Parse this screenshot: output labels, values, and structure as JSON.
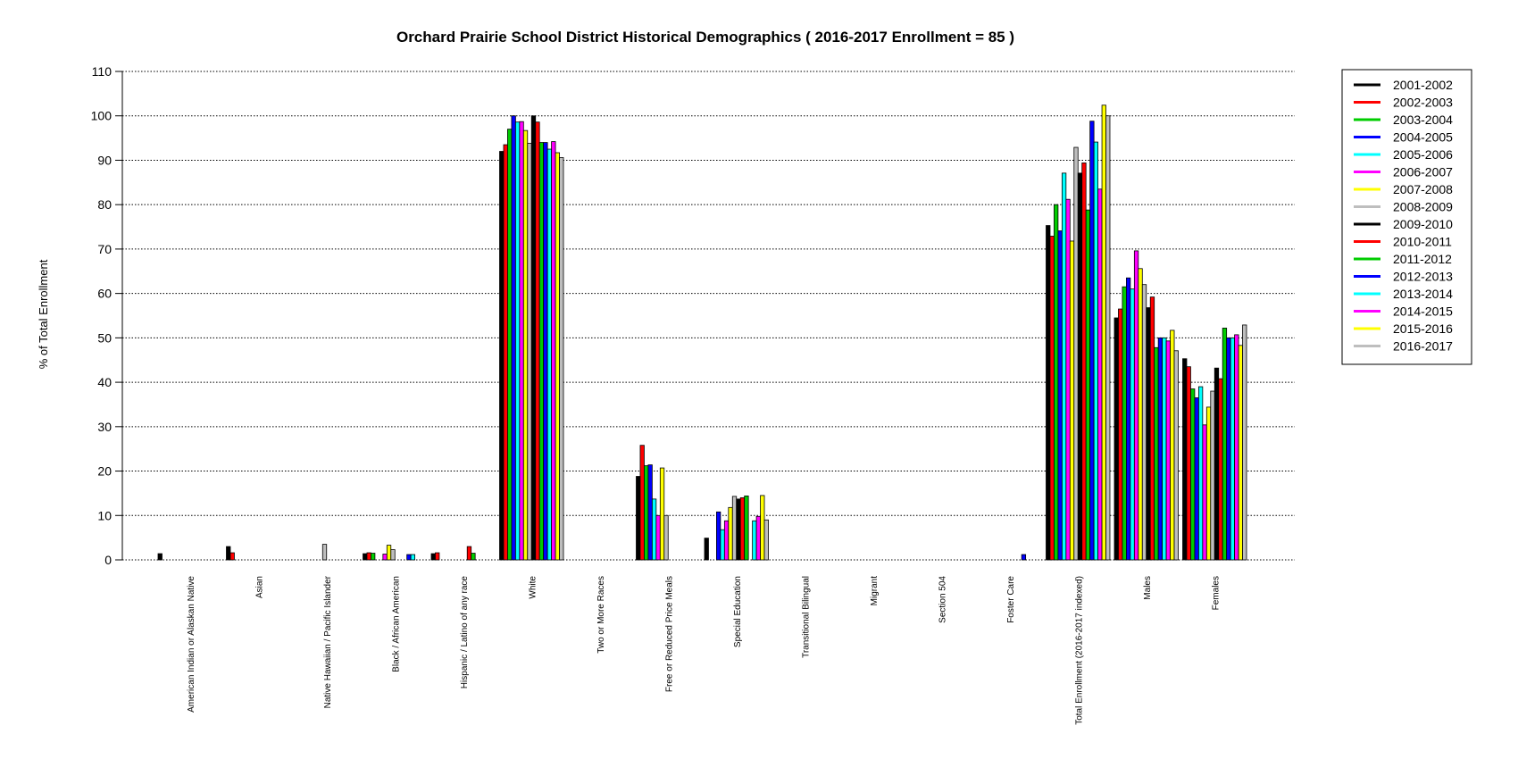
{
  "chart_data": {
    "type": "bar",
    "title": "Orchard Prairie School District Historical Demographics  ( 2016-2017 Enrollment =  85 )",
    "xlabel": "",
    "ylabel": "% of Total Enrollment",
    "ylim": [
      0,
      110
    ],
    "yticks": [
      0,
      10,
      20,
      30,
      40,
      50,
      60,
      70,
      80,
      90,
      100,
      110
    ],
    "grid": "horizontal-dotted",
    "legend_position": "right",
    "categories": [
      "American Indian or Alaskan Native",
      "Asian",
      "Native Hawaiian / Pacific Islander",
      "Black / African American",
      "Hispanic / Latino of any race",
      "White",
      "Two or More Races",
      "Free or Reduced Price Meals",
      "Special Education",
      "Transitional Bilingual",
      "Migrant",
      "Section 504",
      "Foster Care",
      "Total Enrollment (2016-2017 indexed)",
      "Males",
      "Females"
    ],
    "series": [
      {
        "name": "2001-2002",
        "color": "#000000",
        "values": [
          1.4,
          3.0,
          0,
          1.4,
          1.4,
          92.0,
          0,
          18.8,
          4.9,
          0,
          0,
          0,
          0,
          75.3,
          54.5,
          45.3
        ]
      },
      {
        "name": "2002-2003",
        "color": "#ff0000",
        "values": [
          0,
          1.6,
          0,
          1.6,
          1.6,
          93.5,
          0,
          25.8,
          0,
          0,
          0,
          0,
          0,
          72.9,
          56.5,
          43.5
        ]
      },
      {
        "name": "2003-2004",
        "color": "#00cc00",
        "values": [
          0,
          0,
          0,
          1.5,
          0,
          97.0,
          0,
          21.2,
          0,
          0,
          0,
          0,
          0,
          80.0,
          61.5,
          38.5
        ]
      },
      {
        "name": "2004-2005",
        "color": "#0000ff",
        "values": [
          0,
          0,
          0,
          0,
          0,
          100.0,
          0,
          21.4,
          10.8,
          0,
          0,
          0,
          0,
          74.1,
          63.5,
          36.5
        ]
      },
      {
        "name": "2005-2006",
        "color": "#00ffff",
        "values": [
          0,
          0,
          0,
          0,
          0,
          98.6,
          0,
          13.7,
          6.8,
          0,
          0,
          0,
          0,
          87.1,
          61.0,
          39.0
        ]
      },
      {
        "name": "2006-2007",
        "color": "#ff00ff",
        "values": [
          0,
          0,
          0,
          1.3,
          0,
          98.7,
          0,
          10.0,
          8.8,
          0,
          0,
          0,
          0,
          81.2,
          69.6,
          30.4
        ]
      },
      {
        "name": "2007-2008",
        "color": "#ffff00",
        "values": [
          0,
          0,
          0,
          3.3,
          0,
          96.7,
          0,
          20.7,
          11.8,
          0,
          0,
          0,
          0,
          71.8,
          65.6,
          34.4
        ]
      },
      {
        "name": "2008-2009",
        "color": "#bebebe",
        "values": [
          0,
          0,
          3.5,
          2.3,
          0,
          93.8,
          0,
          10.0,
          14.3,
          0,
          0,
          0,
          0,
          92.9,
          62.0,
          38.0
        ]
      },
      {
        "name": "2009-2010",
        "color": "#000000",
        "values": [
          0,
          0,
          0,
          0,
          0,
          100.0,
          0,
          0,
          13.7,
          0,
          0,
          0,
          0,
          87.1,
          56.8,
          43.2
        ]
      },
      {
        "name": "2010-2011",
        "color": "#ff0000",
        "values": [
          0,
          0,
          0,
          0,
          3.0,
          98.6,
          0,
          0,
          14.0,
          0,
          0,
          0,
          0,
          89.4,
          59.2,
          40.8
        ]
      },
      {
        "name": "2011-2012",
        "color": "#00cc00",
        "values": [
          0,
          0,
          0,
          0,
          1.5,
          94.0,
          0,
          0,
          14.4,
          0,
          0,
          0,
          0,
          78.8,
          47.8,
          52.2
        ]
      },
      {
        "name": "2012-2013",
        "color": "#0000ff",
        "values": [
          0,
          0,
          0,
          1.2,
          0,
          94.0,
          0,
          0,
          0,
          0,
          0,
          0,
          1.2,
          98.8,
          50.0,
          50.0
        ]
      },
      {
        "name": "2013-2014",
        "color": "#00ffff",
        "values": [
          0,
          0,
          0,
          1.2,
          0,
          92.5,
          0,
          0,
          8.8,
          0,
          0,
          0,
          0,
          94.1,
          50.0,
          50.0
        ]
      },
      {
        "name": "2014-2015",
        "color": "#ff00ff",
        "values": [
          0,
          0,
          0,
          0,
          0,
          94.2,
          0,
          0,
          9.8,
          0,
          0,
          0,
          0,
          83.5,
          49.3,
          50.7
        ]
      },
      {
        "name": "2015-2016",
        "color": "#ffff00",
        "values": [
          0,
          0,
          0,
          0,
          0,
          91.7,
          0,
          0,
          14.5,
          0,
          0,
          0,
          0,
          102.4,
          51.7,
          48.3
        ]
      },
      {
        "name": "2016-2017",
        "color": "#bebebe",
        "values": [
          0,
          0,
          0,
          0,
          0,
          90.6,
          0,
          0,
          9.0,
          0,
          0,
          0,
          0,
          100.0,
          47.1,
          52.9
        ]
      }
    ]
  }
}
